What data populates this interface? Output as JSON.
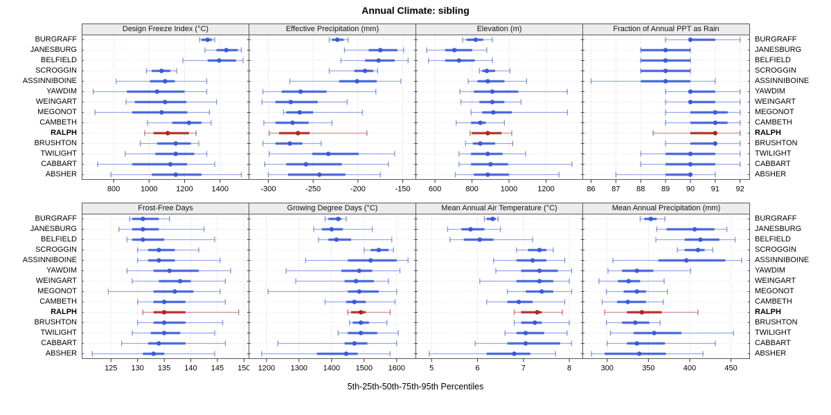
{
  "title": "Annual Climate: sibling",
  "xlabel": "5th-25th-50th-75th-95th Percentiles",
  "stations": [
    "BURGRAFF",
    "JANESBURG",
    "BELFIELD",
    "SCROGGIN",
    "ASSINNIBOINE",
    "YAWDIM",
    "WEINGART",
    "MEGONOT",
    "CAMBETH",
    "RALPH",
    "BRUSHTON",
    "TWILIGHT",
    "CABBART",
    "ABSHER"
  ],
  "highlight_station": "RALPH",
  "colors": {
    "series_blue": "#3A5BD9",
    "highlight_red": "#B22222",
    "strip_bg": "#ECECEC",
    "gridline": "#CFCFCF",
    "panel_border": "#555555"
  },
  "chart_data": {
    "type": "percentile-dotplot",
    "layout": "2 rows x 4 columns, shared station y-axis, free x-axes per panel",
    "legend": "each row shows [5th, 25th, 50th, 75th, 95th] percentiles; dot = median, thick bar = 25th-75th, thin whisker = 5th-95th",
    "grid": "dotted gridlines at x ticks and at each station row",
    "panels": [
      {
        "title": "Design Freeze Index (°C)",
        "xlim": [
          620,
          1565
        ],
        "ticks": [
          800,
          1000,
          1200,
          1400
        ],
        "values": [
          [
            1285,
            1295,
            1330,
            1355,
            1370
          ],
          [
            1315,
            1380,
            1435,
            1500,
            1520
          ],
          [
            1190,
            1330,
            1395,
            1490,
            1530
          ],
          [
            985,
            1015,
            1070,
            1120,
            1155
          ],
          [
            815,
            1005,
            1090,
            1145,
            1325
          ],
          [
            685,
            875,
            1045,
            1200,
            1325
          ],
          [
            870,
            920,
            1090,
            1210,
            1380
          ],
          [
            695,
            905,
            1070,
            1215,
            1340
          ],
          [
            990,
            1130,
            1225,
            1295,
            1350
          ],
          [
            975,
            1025,
            1105,
            1225,
            1265
          ],
          [
            950,
            1045,
            1150,
            1235,
            1280
          ],
          [
            865,
            1035,
            1150,
            1255,
            1325
          ],
          [
            710,
            905,
            1120,
            1215,
            1370
          ],
          [
            785,
            1015,
            1150,
            1295,
            1520
          ]
        ]
      },
      {
        "title": "Effective Precipitation (mm)",
        "xlim": [
          -322,
          -135
        ],
        "ticks": [
          -300,
          -250,
          -200,
          -150
        ],
        "values": [
          [
            -232,
            -229,
            -223,
            -216,
            -211
          ],
          [
            -215,
            -188,
            -175,
            -156,
            -149
          ],
          [
            -219,
            -192,
            -177,
            -159,
            -144
          ],
          [
            -232,
            -204,
            -192,
            -183,
            -178
          ],
          [
            -276,
            -221,
            -201,
            -179,
            -152
          ],
          [
            -306,
            -285,
            -264,
            -235,
            -180
          ],
          [
            -307,
            -292,
            -275,
            -245,
            -212
          ],
          [
            -283,
            -280,
            -265,
            -250,
            -195
          ],
          [
            -305,
            -292,
            -273,
            -255,
            -229
          ],
          [
            -299,
            -288,
            -267,
            -254,
            -190
          ],
          [
            -306,
            -292,
            -276,
            -262,
            -241
          ],
          [
            -299,
            -251,
            -233,
            -199,
            -159
          ],
          [
            -304,
            -280,
            -258,
            -218,
            -166
          ],
          [
            -300,
            -278,
            -243,
            -214,
            -175
          ]
        ]
      },
      {
        "title": "Elevation (m)",
        "xlim": [
          495,
          1400
        ],
        "ticks": [
          600,
          800,
          1000,
          1200
        ],
        "values": [
          [
            750,
            770,
            820,
            860,
            910
          ],
          [
            555,
            655,
            705,
            800,
            880
          ],
          [
            565,
            655,
            730,
            815,
            910
          ],
          [
            840,
            855,
            880,
            925,
            1005
          ],
          [
            780,
            830,
            885,
            975,
            1095
          ],
          [
            735,
            810,
            910,
            1050,
            1315
          ],
          [
            740,
            840,
            910,
            975,
            1065
          ],
          [
            795,
            855,
            915,
            1015,
            1315
          ],
          [
            715,
            795,
            845,
            875,
            975
          ],
          [
            790,
            800,
            885,
            960,
            1015
          ],
          [
            765,
            805,
            845,
            925,
            1020
          ],
          [
            730,
            795,
            885,
            965,
            1090
          ],
          [
            730,
            795,
            900,
            995,
            1340
          ],
          [
            710,
            810,
            885,
            1000,
            1270
          ]
        ]
      },
      {
        "title": "Fraction of Annual PPT as Rain",
        "xlim": [
          85.65,
          92.4
        ],
        "ticks": [
          86,
          87,
          88,
          89,
          90,
          91,
          92
        ],
        "values": [
          [
            89,
            90,
            90,
            91,
            92
          ],
          [
            88,
            88,
            89,
            90,
            90
          ],
          [
            88,
            88,
            89,
            90,
            90
          ],
          [
            88,
            88,
            89,
            90,
            90
          ],
          [
            86,
            88,
            89,
            90,
            91
          ],
          [
            89,
            90,
            90,
            91,
            92
          ],
          [
            89,
            90,
            90,
            91,
            92
          ],
          [
            89,
            90,
            91,
            91.5,
            92
          ],
          [
            89,
            90,
            91,
            91.5,
            92
          ],
          [
            88.5,
            90,
            91,
            91,
            92
          ],
          [
            89,
            90,
            91,
            91,
            92
          ],
          [
            88,
            89,
            90,
            91,
            92
          ],
          [
            88,
            89,
            90,
            91,
            92
          ],
          [
            87,
            89,
            90,
            90,
            91
          ]
        ]
      },
      {
        "title": "Frost-Free Days",
        "xlim": [
          119.5,
          151
        ],
        "ticks": [
          125,
          130,
          135,
          140,
          145,
          150
        ],
        "values": [
          [
            128.5,
            129,
            131,
            134,
            136
          ],
          [
            126.5,
            129,
            131,
            134,
            142.5
          ],
          [
            128,
            129,
            131,
            135,
            144.5
          ],
          [
            130,
            132,
            134,
            137,
            141.5
          ],
          [
            130,
            132,
            134,
            137,
            145.5
          ],
          [
            128,
            133,
            136,
            141.5,
            147.5
          ],
          [
            129,
            134,
            138,
            140,
            146.5
          ],
          [
            124.5,
            133,
            137,
            140.5,
            145.5
          ],
          [
            130,
            133,
            135,
            139,
            146.5
          ],
          [
            131,
            133,
            135,
            139,
            149
          ],
          [
            130,
            133,
            135,
            139,
            146
          ],
          [
            129,
            132.5,
            135,
            138,
            144.5
          ],
          [
            127,
            132,
            134,
            139,
            146.5
          ],
          [
            121.5,
            131,
            133,
            135,
            144.5
          ]
        ]
      },
      {
        "title": "Growing Degree Days (°C)",
        "xlim": [
          1145,
          1660
        ],
        "ticks": [
          1200,
          1300,
          1400,
          1500,
          1600
        ],
        "values": [
          [
            1380,
            1390,
            1420,
            1430,
            1445
          ],
          [
            1345,
            1370,
            1400,
            1435,
            1525
          ],
          [
            1360,
            1390,
            1415,
            1460,
            1585
          ],
          [
            1500,
            1520,
            1545,
            1575,
            1590
          ],
          [
            1320,
            1450,
            1520,
            1600,
            1635
          ],
          [
            1260,
            1430,
            1485,
            1525,
            1610
          ],
          [
            1290,
            1440,
            1475,
            1530,
            1575
          ],
          [
            1205,
            1450,
            1485,
            1545,
            1600
          ],
          [
            1380,
            1445,
            1470,
            1505,
            1595
          ],
          [
            1450,
            1460,
            1490,
            1505,
            1580
          ],
          [
            1455,
            1465,
            1490,
            1515,
            1570
          ],
          [
            1420,
            1450,
            1490,
            1540,
            1605
          ],
          [
            1235,
            1440,
            1470,
            1510,
            1600
          ],
          [
            1185,
            1355,
            1445,
            1480,
            1580
          ]
        ]
      },
      {
        "title": "Mean Annual Air Temperature (°C)",
        "xlim": [
          4.65,
          8.3
        ],
        "ticks": [
          5,
          6,
          7,
          8
        ],
        "values": [
          [
            6.15,
            6.2,
            6.33,
            6.4,
            6.45
          ],
          [
            5.35,
            5.65,
            5.85,
            6.15,
            6.5
          ],
          [
            5.4,
            5.7,
            6.05,
            6.35,
            7.2
          ],
          [
            6.85,
            7.1,
            7.35,
            7.5,
            7.65
          ],
          [
            6.35,
            6.85,
            7.2,
            7.5,
            7.9
          ],
          [
            6.4,
            6.95,
            7.35,
            7.75,
            8.05
          ],
          [
            6.05,
            6.85,
            7.35,
            7.65,
            8.0
          ],
          [
            6.65,
            7.05,
            7.4,
            7.65,
            8.05
          ],
          [
            6.2,
            6.65,
            6.9,
            7.2,
            7.9
          ],
          [
            6.8,
            6.95,
            7.3,
            7.4,
            7.85
          ],
          [
            6.8,
            6.95,
            7.25,
            7.4,
            8.0
          ],
          [
            6.6,
            6.85,
            7.05,
            7.45,
            7.95
          ],
          [
            5.95,
            6.65,
            7.05,
            7.8,
            8.05
          ],
          [
            4.95,
            6.2,
            6.8,
            7.15,
            7.7
          ]
        ]
      },
      {
        "title": "Mean Annual Precipitation (mm)",
        "xlim": [
          270,
          473
        ],
        "ticks": [
          300,
          350,
          400,
          450
        ],
        "values": [
          [
            340,
            345,
            353,
            360,
            370
          ],
          [
            360,
            372,
            406,
            430,
            445
          ],
          [
            359,
            394,
            413,
            436,
            455
          ],
          [
            385,
            394,
            410,
            418,
            428
          ],
          [
            307,
            362,
            396,
            443,
            463
          ],
          [
            301,
            318,
            336,
            356,
            401
          ],
          [
            290,
            313,
            326,
            340,
            369
          ],
          [
            299,
            320,
            336,
            347,
            373
          ],
          [
            294,
            312,
            325,
            347,
            368
          ],
          [
            297,
            324,
            342,
            366,
            410
          ],
          [
            299,
            318,
            334,
            351,
            364
          ],
          [
            304,
            332,
            357,
            390,
            453
          ],
          [
            300,
            324,
            336,
            370,
            431
          ],
          [
            281,
            297,
            339,
            371,
            416
          ]
        ]
      }
    ]
  }
}
